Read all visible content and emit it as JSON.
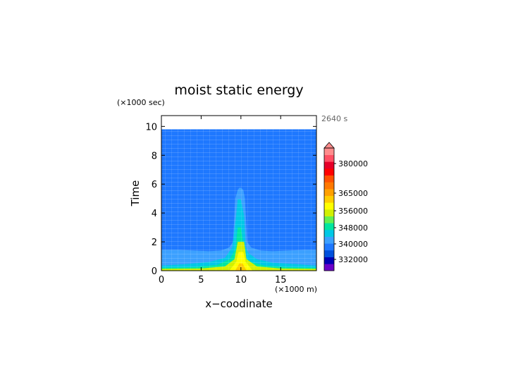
{
  "chart_data": {
    "type": "heatmap",
    "title": "moist static energy",
    "xlabel": "x−coodinate",
    "ylabel": "Time",
    "x_unit": "(×1000 m)",
    "y_unit": "(×1000 sec)",
    "time_stamp": "2640 s",
    "xlim": [
      0,
      19.5
    ],
    "ylim": [
      0,
      10.75
    ],
    "data_top": 9.8,
    "x_ticks": [
      0,
      5,
      10,
      15
    ],
    "y_ticks": [
      0,
      2,
      4,
      6,
      8,
      10
    ],
    "colorbar": {
      "labels": [
        "380000",
        "365000",
        "356000",
        "348000",
        "340000",
        "332000"
      ],
      "colors": [
        "#6a00c8",
        "#0000b4",
        "#0050dc",
        "#1e78ff",
        "#3ca0ff",
        "#00c8e6",
        "#00e6a0",
        "#64f050",
        "#d2f000",
        "#ffff00",
        "#ffcd00",
        "#ffa000",
        "#ff7800",
        "#ff5000",
        "#ff0000",
        "#e60028",
        "#ff5064",
        "#ff8c8c"
      ],
      "extend_max": true
    },
    "grid": false,
    "contours": [
      {
        "level": "background",
        "color": "#1e78ff"
      },
      {
        "level": "band-1",
        "color": "#3ca0ff",
        "x": [
          0,
          2,
          4,
          6,
          7.5,
          8.5,
          9.0,
          9.15,
          9.3,
          9.6,
          9.8,
          10.0,
          10.3,
          10.5,
          10.65,
          10.8,
          11.3,
          12.5,
          14,
          16,
          18,
          19.5
        ],
        "y": [
          1.45,
          1.45,
          1.4,
          1.35,
          1.4,
          1.6,
          2.0,
          3.5,
          5.0,
          5.6,
          5.75,
          5.75,
          5.6,
          5.0,
          3.5,
          2.0,
          1.6,
          1.4,
          1.35,
          1.4,
          1.45,
          1.45
        ]
      },
      {
        "level": "band-2",
        "color": "#00c8e6",
        "x": [
          0,
          3,
          6,
          8,
          8.9,
          9.4,
          9.6,
          10.0,
          10.4,
          10.6,
          11.0,
          12,
          14,
          17,
          19.5
        ],
        "y": [
          0.35,
          0.45,
          0.6,
          0.9,
          1.6,
          3.8,
          4.95,
          4.95,
          3.8,
          1.6,
          1.2,
          0.8,
          0.55,
          0.45,
          0.35
        ]
      },
      {
        "level": "band-3",
        "color": "#00e6a0",
        "x": [
          0,
          4,
          7,
          8.6,
          9.3,
          9.6,
          10.0,
          10.4,
          10.6,
          11.3,
          13,
          16,
          19.5
        ],
        "y": [
          0.2,
          0.25,
          0.4,
          0.8,
          1.5,
          3.0,
          3.0,
          1.5,
          0.9,
          0.6,
          0.35,
          0.25,
          0.2
        ]
      },
      {
        "level": "band-4",
        "color": "#d2f000",
        "x": [
          0,
          5,
          8,
          9.2,
          9.6,
          10.4,
          10.7,
          12,
          15,
          19.5
        ],
        "y": [
          0.13,
          0.15,
          0.3,
          0.8,
          2.0,
          2.0,
          0.8,
          0.3,
          0.15,
          0.13
        ]
      },
      {
        "level": "band-5",
        "color": "#ffff00",
        "x": [
          8.6,
          9.4,
          9.7,
          10.3,
          10.6,
          11.4
        ],
        "y": [
          0.05,
          0.6,
          1.3,
          1.3,
          0.6,
          0.05
        ]
      },
      {
        "level": "band-6",
        "color": "#ffcd00",
        "x": [
          9.3,
          9.8,
          10.2,
          10.7
        ],
        "y": [
          0.02,
          0.5,
          0.5,
          0.02
        ]
      }
    ]
  }
}
